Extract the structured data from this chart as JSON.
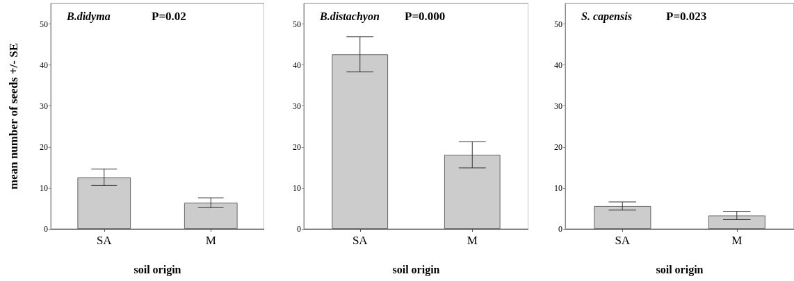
{
  "chart_data": [
    {
      "type": "bar",
      "title": "B.didyma",
      "annotations": [
        "P=0.02"
      ],
      "xlabel": "soil origin",
      "ylabel": "mean number of seeds +/- SE",
      "categories": [
        "SA",
        "M"
      ],
      "values": [
        12.6,
        6.4
      ],
      "errors": [
        2,
        1.2
      ],
      "color": "#cccccc",
      "ylim": [
        0,
        55
      ],
      "yticks": [
        0,
        10,
        20,
        30,
        40,
        50
      ],
      "grid": false
    },
    {
      "type": "bar",
      "title": "B.distachyon",
      "annotations": [
        "P=0.000"
      ],
      "xlabel": "soil origin",
      "categories": [
        "SA",
        "M"
      ],
      "values": [
        42.6,
        18.1
      ],
      "errors": [
        4.3,
        3.2
      ],
      "color": "#cccccc",
      "ylim": [
        0,
        55
      ],
      "yticks": [
        0,
        10,
        20,
        30,
        40,
        50
      ],
      "grid": false
    },
    {
      "type": "bar",
      "title": "S. capensis",
      "annotations": [
        "P=0.023"
      ],
      "xlabel": "soil origin",
      "categories": [
        "SA",
        "M"
      ],
      "values": [
        5.6,
        3.3
      ],
      "errors": [
        1,
        1
      ],
      "color": "#cccccc",
      "ylim": [
        0,
        55
      ],
      "yticks": [
        0,
        10,
        20,
        30,
        40,
        50
      ],
      "grid": false
    }
  ]
}
